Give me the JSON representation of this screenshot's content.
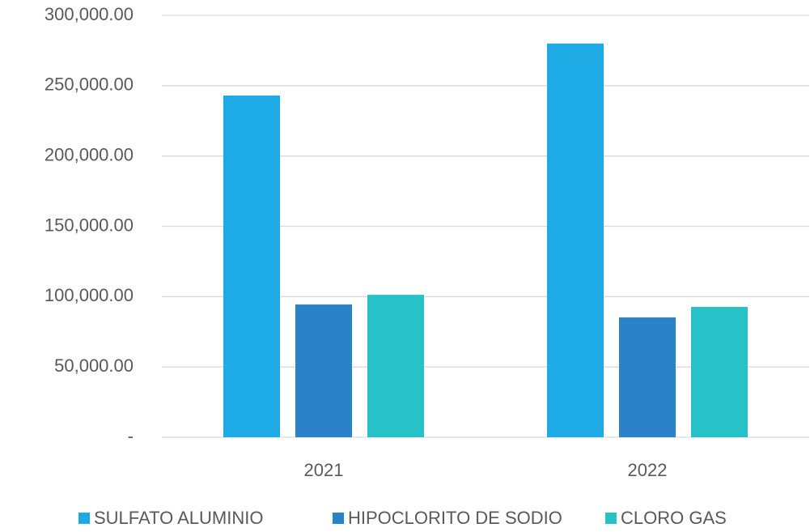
{
  "chart_data": {
    "type": "bar",
    "categories": [
      "2021",
      "2022"
    ],
    "series": [
      {
        "name": "SULFATO ALUMINIO",
        "color": "#1eaae4",
        "values": [
          243000,
          280000
        ]
      },
      {
        "name": "HIPOCLORITO DE SODIO",
        "color": "#2a82c8",
        "values": [
          94400,
          85200
        ]
      },
      {
        "name": "CLORO GAS",
        "color": "#27c2c8",
        "values": [
          101300,
          92700
        ]
      }
    ],
    "ylim": [
      0,
      300000
    ],
    "yticks": [
      {
        "value": 0,
        "label": "-"
      },
      {
        "value": 50000,
        "label": "50,000.00"
      },
      {
        "value": 100000,
        "label": "100,000.00"
      },
      {
        "value": 150000,
        "label": "150,000.00"
      },
      {
        "value": 200000,
        "label": "200,000.00"
      },
      {
        "value": 250000,
        "label": "250,000.00"
      },
      {
        "value": 300000,
        "label": "300,000.00"
      }
    ],
    "grid": true,
    "legend": "bottom"
  }
}
